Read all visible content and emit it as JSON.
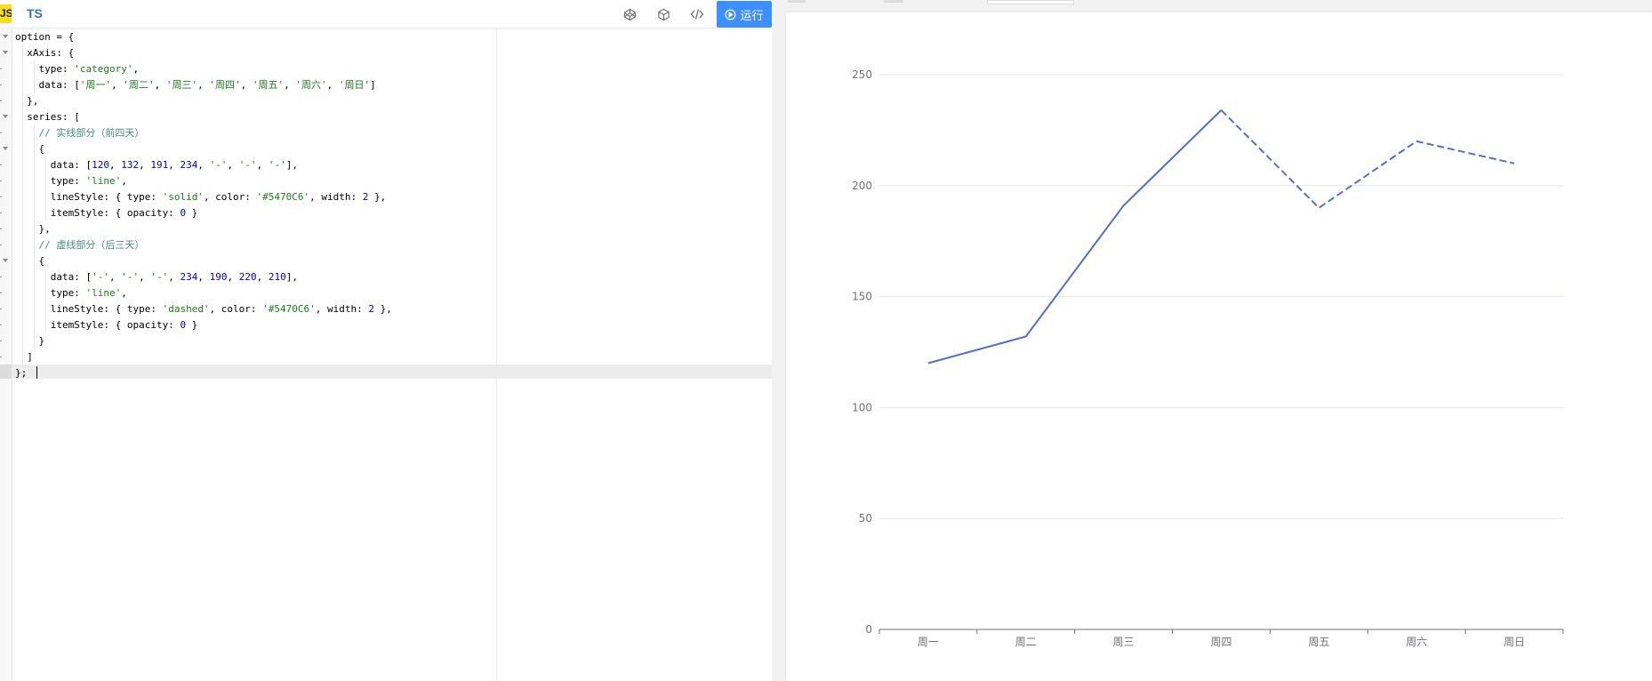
{
  "toolbar": {
    "js_badge": "JS",
    "ts_tab": "TS",
    "run_label": "运行",
    "icons": [
      "codepen-icon",
      "codesandbox-icon",
      "code-icon",
      "play-circle-icon"
    ],
    "accent_color": "#3d8fff"
  },
  "editor": {
    "lines": [
      "option = {",
      "  xAxis: {",
      "    type: 'category',",
      "    data: ['周一', '周二', '周三', '周四', '周五', '周六', '周日']",
      "  },",
      "  series: [",
      "    // 实线部分（前四天）",
      "    {",
      "      data: [120, 132, 191, 234, '-', '-', '-'],",
      "      type: 'line',",
      "      lineStyle: { type: 'solid', color: '#5470C6', width: 2 },",
      "      itemStyle: { opacity: 0 }",
      "    },",
      "    // 虚线部分（后三天）",
      "    {",
      "      data: ['-', '-', '-', 234, 190, 220, 210],",
      "      type: 'line',",
      "      lineStyle: { type: 'dashed', color: '#5470C6', width: 2 },",
      "      itemStyle: { opacity: 0 }",
      "    }",
      "  ]",
      "};"
    ]
  },
  "chart_data": {
    "type": "line",
    "categories": [
      "周一",
      "周二",
      "周三",
      "周四",
      "周五",
      "周六",
      "周日"
    ],
    "series": [
      {
        "values": [
          120,
          132,
          191,
          234,
          null,
          null,
          null
        ],
        "line_type": "solid",
        "color": "#5470C6"
      },
      {
        "values": [
          null,
          null,
          null,
          234,
          190,
          220,
          210
        ],
        "line_type": "dashed",
        "color": "#5470C6"
      }
    ],
    "yticks": [
      0,
      50,
      100,
      150,
      200,
      250
    ],
    "ylim": [
      0,
      250
    ],
    "grid": true,
    "legend": "none",
    "title": "",
    "xlabel": "",
    "ylabel": ""
  }
}
